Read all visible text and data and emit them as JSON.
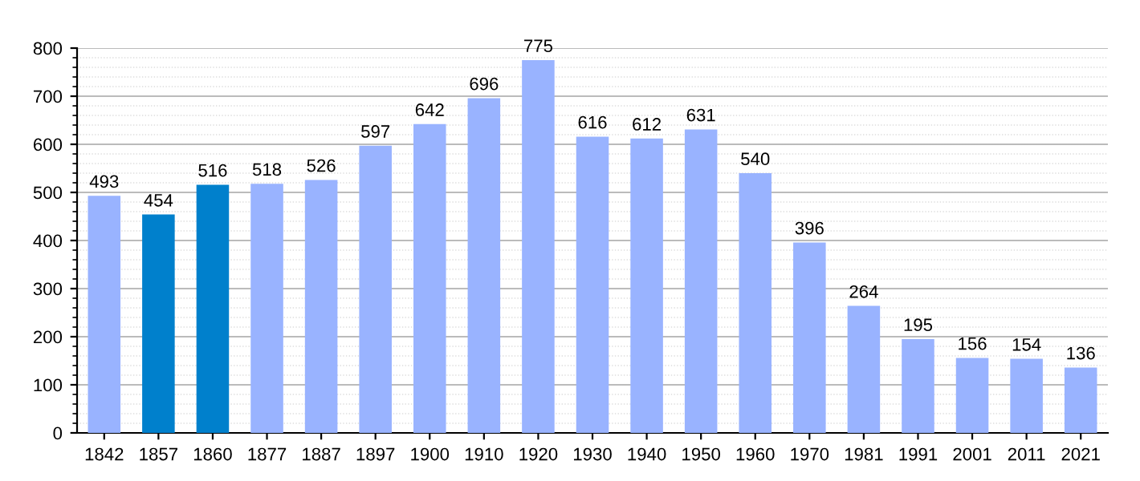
{
  "chart_data": {
    "type": "bar",
    "categories": [
      "1842",
      "1857",
      "1860",
      "1877",
      "1887",
      "1897",
      "1900",
      "1910",
      "1920",
      "1930",
      "1940",
      "1950",
      "1960",
      "1970",
      "1981",
      "1991",
      "2001",
      "2011",
      "2021"
    ],
    "values": [
      493,
      454,
      516,
      518,
      526,
      597,
      642,
      696,
      775,
      616,
      612,
      631,
      540,
      396,
      264,
      195,
      156,
      154,
      136
    ],
    "colors": [
      "#99b3ff",
      "#0080cc",
      "#0080cc",
      "#99b3ff",
      "#99b3ff",
      "#99b3ff",
      "#99b3ff",
      "#99b3ff",
      "#99b3ff",
      "#99b3ff",
      "#99b3ff",
      "#99b3ff",
      "#99b3ff",
      "#99b3ff",
      "#99b3ff",
      "#99b3ff",
      "#99b3ff",
      "#99b3ff",
      "#99b3ff"
    ],
    "ylim": [
      0,
      800
    ],
    "yticks": [
      0,
      100,
      200,
      300,
      400,
      500,
      600,
      700,
      800
    ],
    "grid": "y",
    "data_labels": true
  }
}
